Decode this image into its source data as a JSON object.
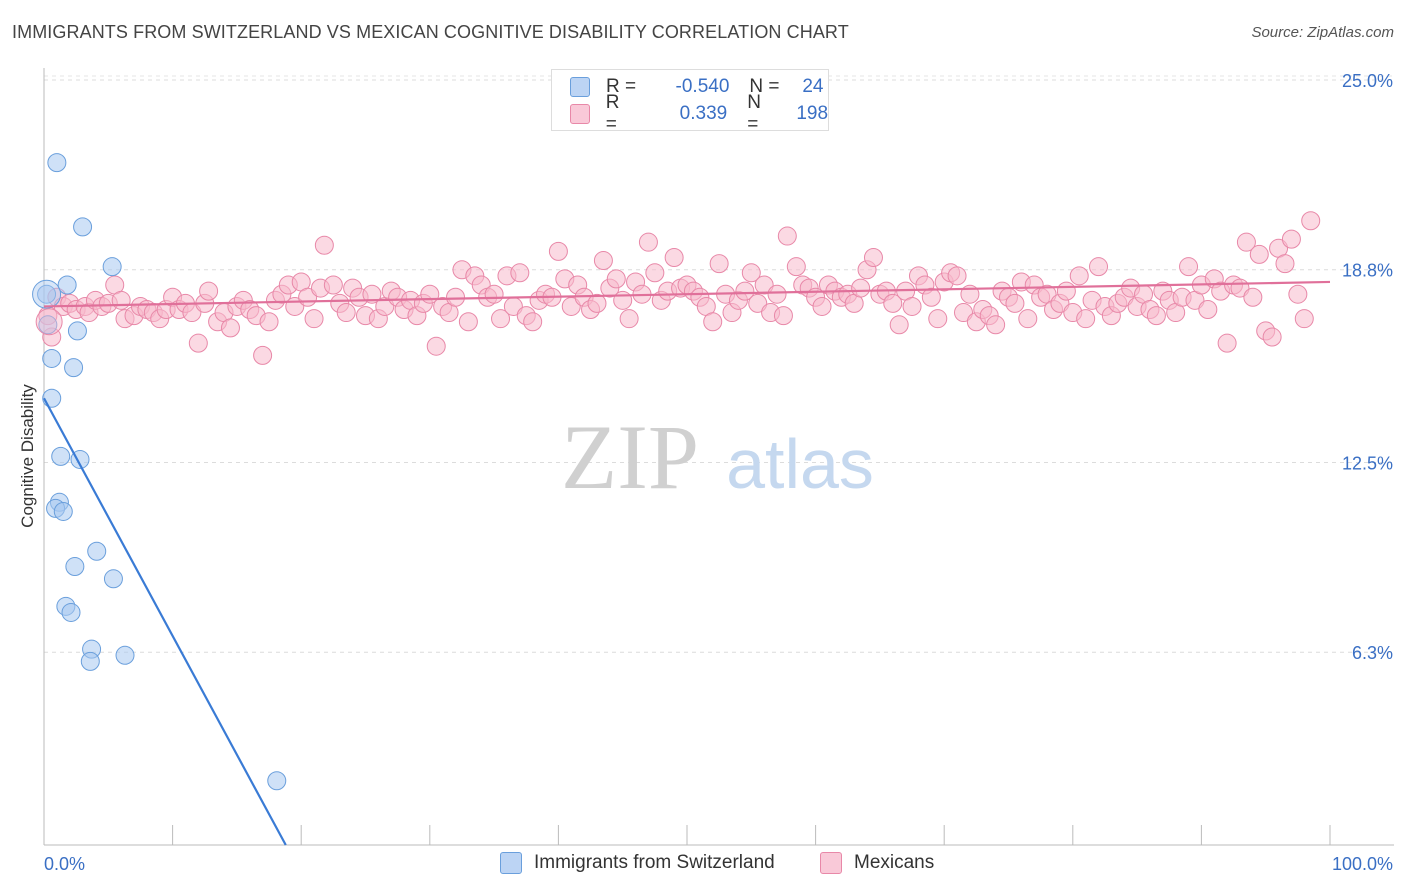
{
  "title": "IMMIGRANTS FROM SWITZERLAND VS MEXICAN COGNITIVE DISABILITY CORRELATION CHART",
  "source": "Source: ZipAtlas.com",
  "watermark": {
    "zip": "ZIP",
    "atlas": "atlas"
  },
  "legend": {
    "rows": [
      {
        "r_label": "R =",
        "r_value": "-0.540",
        "n_label": "N =",
        "n_value": "24"
      },
      {
        "r_label": "R =",
        "r_value": "0.339",
        "n_label": "N =",
        "n_value": "198"
      }
    ]
  },
  "chart_data": {
    "type": "scatter",
    "xlabel": "",
    "ylabel": "Cognitive Disability",
    "xlim": [
      0,
      100
    ],
    "ylim": [
      0,
      25
    ],
    "x_tick_labels": [
      "0.0%",
      "100.0%"
    ],
    "y_ticks": [
      6.3,
      12.5,
      18.8,
      25.0
    ],
    "y_tick_labels": [
      "6.3%",
      "12.5%",
      "18.8%",
      "25.0%"
    ],
    "grid": "horizontal dashed",
    "legend_position": "top-center",
    "series": [
      {
        "name": "Immigrants from Switzerland",
        "color": "#a8c8f0",
        "edge": "#6a9fdc",
        "line_color": "#3a7bd5",
        "trend": {
          "x0": 0,
          "y0": 14.6,
          "x1": 18.8,
          "y1": 0
        },
        "points": [
          [
            0.2,
            18.0
          ],
          [
            1.0,
            22.3
          ],
          [
            3.0,
            20.2
          ],
          [
            5.3,
            18.9
          ],
          [
            1.8,
            18.3
          ],
          [
            0.3,
            17.0
          ],
          [
            2.6,
            16.8
          ],
          [
            0.6,
            15.9
          ],
          [
            2.3,
            15.6
          ],
          [
            0.6,
            14.6
          ],
          [
            1.3,
            12.7
          ],
          [
            2.8,
            12.6
          ],
          [
            1.2,
            11.2
          ],
          [
            0.9,
            11.0
          ],
          [
            1.5,
            10.9
          ],
          [
            4.1,
            9.6
          ],
          [
            2.4,
            9.1
          ],
          [
            5.4,
            8.7
          ],
          [
            1.7,
            7.8
          ],
          [
            2.1,
            7.6
          ],
          [
            3.7,
            6.4
          ],
          [
            3.6,
            6.0
          ],
          [
            6.3,
            6.2
          ],
          [
            18.1,
            2.1
          ]
        ]
      },
      {
        "name": "Mexicans",
        "color": "#f7b9cc",
        "edge": "#e888a8",
        "line_color": "#e0709a",
        "trend": {
          "x0": 0,
          "y0": 17.6,
          "x1": 100,
          "y1": 18.4
        },
        "points": [
          [
            0.3,
            17.3
          ],
          [
            0.6,
            16.6
          ],
          [
            1.0,
            17.9
          ],
          [
            1.5,
            17.6
          ],
          [
            2.0,
            17.7
          ],
          [
            2.5,
            17.5
          ],
          [
            3.2,
            17.6
          ],
          [
            3.5,
            17.4
          ],
          [
            4.0,
            17.8
          ],
          [
            4.5,
            17.6
          ],
          [
            5.0,
            17.7
          ],
          [
            5.5,
            18.3
          ],
          [
            6.0,
            17.8
          ],
          [
            6.3,
            17.2
          ],
          [
            7.0,
            17.3
          ],
          [
            7.5,
            17.6
          ],
          [
            8.0,
            17.5
          ],
          [
            8.5,
            17.4
          ],
          [
            9.0,
            17.2
          ],
          [
            9.5,
            17.5
          ],
          [
            10.0,
            17.9
          ],
          [
            10.5,
            17.5
          ],
          [
            11.0,
            17.7
          ],
          [
            11.5,
            17.4
          ],
          [
            12.0,
            16.4
          ],
          [
            12.5,
            17.7
          ],
          [
            12.8,
            18.1
          ],
          [
            13.5,
            17.1
          ],
          [
            14.0,
            17.4
          ],
          [
            14.5,
            16.9
          ],
          [
            15.0,
            17.6
          ],
          [
            15.5,
            17.8
          ],
          [
            16.0,
            17.5
          ],
          [
            16.5,
            17.3
          ],
          [
            17.0,
            16.0
          ],
          [
            17.5,
            17.1
          ],
          [
            18.0,
            17.8
          ],
          [
            18.5,
            18.0
          ],
          [
            19.0,
            18.3
          ],
          [
            19.5,
            17.6
          ],
          [
            20.0,
            18.4
          ],
          [
            20.5,
            17.9
          ],
          [
            21.0,
            17.2
          ],
          [
            21.5,
            18.2
          ],
          [
            21.8,
            19.6
          ],
          [
            22.5,
            18.3
          ],
          [
            23.0,
            17.7
          ],
          [
            23.5,
            17.4
          ],
          [
            24.0,
            18.2
          ],
          [
            24.5,
            17.9
          ],
          [
            25.0,
            17.3
          ],
          [
            25.5,
            18.0
          ],
          [
            26.0,
            17.2
          ],
          [
            26.5,
            17.6
          ],
          [
            27.0,
            18.1
          ],
          [
            27.5,
            17.9
          ],
          [
            28.0,
            17.5
          ],
          [
            28.5,
            17.8
          ],
          [
            29.0,
            17.3
          ],
          [
            29.5,
            17.7
          ],
          [
            30.0,
            18.0
          ],
          [
            30.5,
            16.3
          ],
          [
            31.0,
            17.6
          ],
          [
            31.5,
            17.4
          ],
          [
            32.0,
            17.9
          ],
          [
            32.5,
            18.8
          ],
          [
            33.0,
            17.1
          ],
          [
            33.5,
            18.6
          ],
          [
            34.0,
            18.3
          ],
          [
            34.5,
            17.9
          ],
          [
            35.0,
            18.0
          ],
          [
            35.5,
            17.2
          ],
          [
            36.0,
            18.6
          ],
          [
            36.5,
            17.6
          ],
          [
            37.0,
            18.7
          ],
          [
            37.5,
            17.3
          ],
          [
            38.0,
            17.1
          ],
          [
            38.5,
            17.8
          ],
          [
            39.0,
            18.0
          ],
          [
            39.5,
            17.9
          ],
          [
            40.0,
            19.4
          ],
          [
            40.5,
            18.5
          ],
          [
            41.0,
            17.6
          ],
          [
            41.5,
            18.3
          ],
          [
            42.0,
            17.9
          ],
          [
            42.5,
            17.5
          ],
          [
            43.0,
            17.7
          ],
          [
            43.5,
            19.1
          ],
          [
            44.0,
            18.2
          ],
          [
            44.5,
            18.5
          ],
          [
            45.0,
            17.8
          ],
          [
            45.5,
            17.2
          ],
          [
            46.0,
            18.4
          ],
          [
            46.5,
            18.0
          ],
          [
            47.0,
            19.7
          ],
          [
            47.5,
            18.7
          ],
          [
            48.0,
            17.8
          ],
          [
            48.5,
            18.1
          ],
          [
            49.0,
            19.2
          ],
          [
            49.5,
            18.2
          ],
          [
            50.0,
            18.3
          ],
          [
            50.5,
            18.1
          ],
          [
            51.0,
            17.9
          ],
          [
            51.5,
            17.6
          ],
          [
            52.0,
            17.1
          ],
          [
            52.5,
            19.0
          ],
          [
            53.0,
            18.0
          ],
          [
            53.5,
            17.4
          ],
          [
            54.0,
            17.8
          ],
          [
            54.5,
            18.1
          ],
          [
            55.0,
            18.7
          ],
          [
            55.5,
            17.7
          ],
          [
            56.0,
            18.3
          ],
          [
            56.5,
            17.4
          ],
          [
            57.0,
            18.0
          ],
          [
            57.5,
            17.3
          ],
          [
            57.8,
            19.9
          ],
          [
            58.5,
            18.9
          ],
          [
            59.0,
            18.3
          ],
          [
            59.5,
            18.2
          ],
          [
            60.0,
            17.9
          ],
          [
            60.5,
            17.6
          ],
          [
            61.0,
            18.3
          ],
          [
            61.5,
            18.1
          ],
          [
            62.0,
            17.9
          ],
          [
            62.5,
            18.0
          ],
          [
            63.0,
            17.7
          ],
          [
            63.5,
            18.2
          ],
          [
            64.0,
            18.8
          ],
          [
            64.5,
            19.2
          ],
          [
            65.0,
            18.0
          ],
          [
            65.5,
            18.1
          ],
          [
            66.0,
            17.7
          ],
          [
            66.5,
            17.0
          ],
          [
            67.0,
            18.1
          ],
          [
            67.5,
            17.6
          ],
          [
            68.0,
            18.6
          ],
          [
            68.5,
            18.3
          ],
          [
            69.0,
            17.9
          ],
          [
            69.5,
            17.2
          ],
          [
            70.0,
            18.4
          ],
          [
            70.5,
            18.7
          ],
          [
            71.0,
            18.6
          ],
          [
            71.5,
            17.4
          ],
          [
            72.0,
            18.0
          ],
          [
            72.5,
            17.1
          ],
          [
            73.0,
            17.5
          ],
          [
            73.5,
            17.3
          ],
          [
            74.0,
            17.0
          ],
          [
            74.5,
            18.1
          ],
          [
            75.0,
            17.9
          ],
          [
            75.5,
            17.7
          ],
          [
            76.0,
            18.4
          ],
          [
            76.5,
            17.2
          ],
          [
            77.0,
            18.3
          ],
          [
            77.5,
            17.9
          ],
          [
            78.0,
            18.0
          ],
          [
            78.5,
            17.5
          ],
          [
            79.0,
            17.7
          ],
          [
            79.5,
            18.1
          ],
          [
            80.0,
            17.4
          ],
          [
            80.5,
            18.6
          ],
          [
            81.0,
            17.2
          ],
          [
            81.5,
            17.8
          ],
          [
            82.0,
            18.9
          ],
          [
            82.5,
            17.6
          ],
          [
            83.0,
            17.3
          ],
          [
            83.5,
            17.7
          ],
          [
            84.0,
            17.9
          ],
          [
            84.5,
            18.2
          ],
          [
            85.0,
            17.6
          ],
          [
            85.5,
            18.0
          ],
          [
            86.0,
            17.5
          ],
          [
            86.5,
            17.3
          ],
          [
            87.0,
            18.1
          ],
          [
            87.5,
            17.8
          ],
          [
            88.0,
            17.4
          ],
          [
            88.5,
            17.9
          ],
          [
            89.0,
            18.9
          ],
          [
            89.5,
            17.8
          ],
          [
            90.0,
            18.3
          ],
          [
            90.5,
            17.5
          ],
          [
            91.0,
            18.5
          ],
          [
            91.5,
            18.1
          ],
          [
            92.0,
            16.4
          ],
          [
            92.5,
            18.3
          ],
          [
            93.0,
            18.2
          ],
          [
            93.5,
            19.7
          ],
          [
            94.0,
            17.9
          ],
          [
            94.5,
            19.3
          ],
          [
            95.0,
            16.8
          ],
          [
            95.5,
            16.6
          ],
          [
            96.0,
            19.5
          ],
          [
            96.5,
            19.0
          ],
          [
            97.0,
            19.8
          ],
          [
            97.5,
            18.0
          ],
          [
            98.0,
            17.2
          ],
          [
            98.5,
            20.4
          ]
        ]
      }
    ]
  }
}
